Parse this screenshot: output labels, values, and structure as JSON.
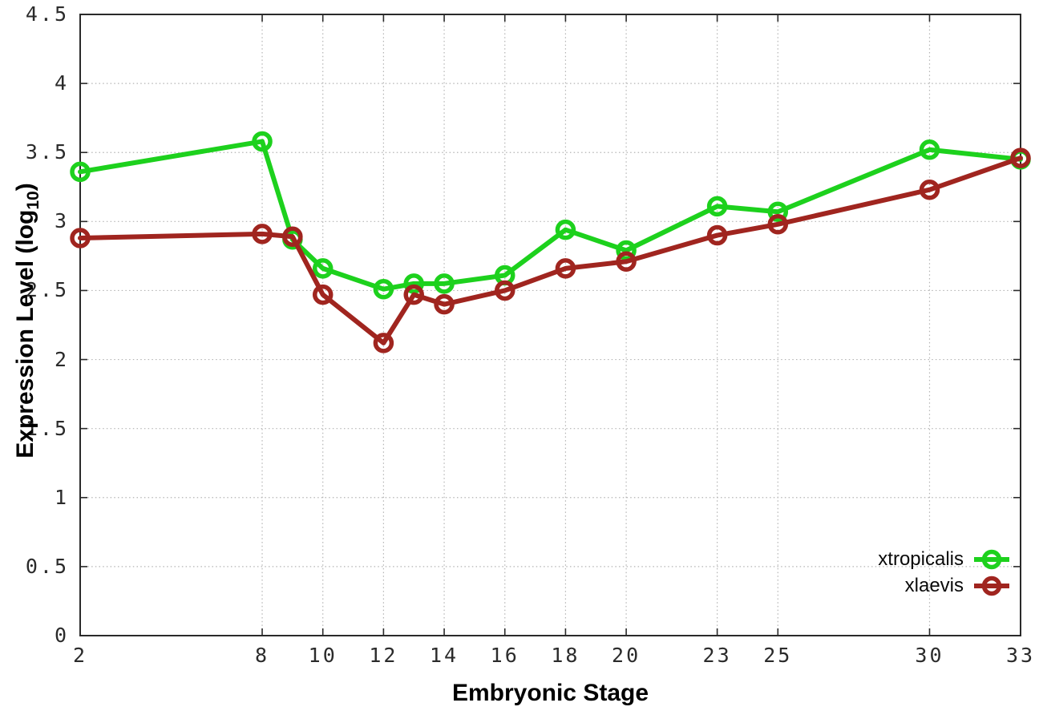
{
  "chart_data": {
    "type": "line",
    "title": "",
    "xlabel": "Embryonic Stage",
    "ylabel": "Expression Level (log10)",
    "ylabel_parts": {
      "prefix": "Expression Level (log",
      "sub": "10",
      "suffix": ")"
    },
    "xlim": [
      2,
      33
    ],
    "ylim": [
      0,
      4.5
    ],
    "grid": true,
    "legend_position": "bottom-right",
    "x_tick_labels": [
      "2",
      "8",
      "10",
      "12",
      "14",
      "16",
      "18",
      "20",
      "23",
      "25",
      "30",
      "33"
    ],
    "y_tick_labels": [
      "0",
      "0.5",
      "1",
      "1.5",
      "2",
      "2.5",
      "3",
      "3.5",
      "4",
      "4.5"
    ],
    "x": [
      2,
      8,
      9,
      10,
      12,
      13,
      14,
      16,
      18,
      20,
      23,
      25,
      30,
      33
    ],
    "series": [
      {
        "name": "xtropicalis",
        "color": "#1dd11d",
        "marker": "open-circle",
        "values": [
          3.36,
          3.58,
          2.87,
          2.66,
          2.51,
          2.55,
          2.55,
          2.61,
          2.94,
          2.79,
          3.11,
          3.07,
          3.52,
          3.45
        ]
      },
      {
        "name": "xlaevis",
        "color": "#a0251f",
        "marker": "open-circle",
        "values": [
          2.88,
          2.91,
          2.89,
          2.47,
          2.12,
          2.47,
          2.4,
          2.5,
          2.66,
          2.71,
          2.9,
          2.98,
          3.23,
          3.46
        ]
      }
    ]
  }
}
